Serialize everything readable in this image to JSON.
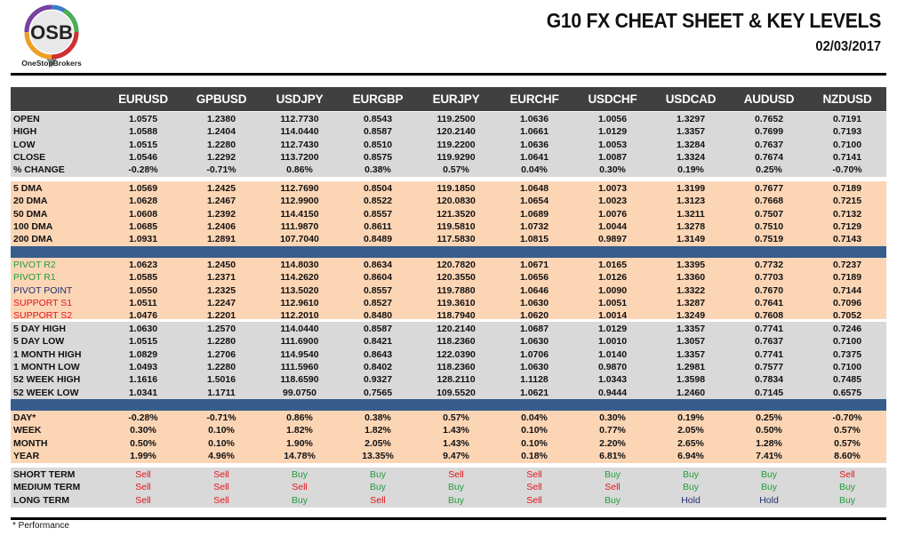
{
  "logo": {
    "text": "OSB",
    "brand": "OneStopBrokers"
  },
  "header": {
    "title": "G10 FX CHEAT SHEET & KEY LEVELS",
    "date": "02/03/2017"
  },
  "columns": [
    "EURUSD",
    "GPBUSD",
    "USDJPY",
    "EURGBP",
    "EURJPY",
    "EURCHF",
    "USDCHF",
    "USDCAD",
    "AUDUSD",
    "NZDUSD"
  ],
  "colors": {
    "header_bg": "#404040",
    "gray_bg": "#d9d9d9",
    "peach_bg": "#fcd5b5",
    "separator": "#375d8c",
    "green": "#1f9d3a",
    "red": "#e3131b",
    "navy": "#1f3070"
  },
  "sections": [
    {
      "bg": "gray",
      "rows": [
        {
          "label": "OPEN",
          "values": [
            "1.0575",
            "1.2380",
            "112.7730",
            "0.8543",
            "119.2500",
            "1.0636",
            "1.0056",
            "1.3297",
            "0.7652",
            "0.7191"
          ]
        },
        {
          "label": "HIGH",
          "values": [
            "1.0588",
            "1.2404",
            "114.0440",
            "0.8587",
            "120.2140",
            "1.0661",
            "1.0129",
            "1.3357",
            "0.7699",
            "0.7193"
          ]
        },
        {
          "label": "LOW",
          "values": [
            "1.0515",
            "1.2280",
            "112.7430",
            "0.8510",
            "119.2200",
            "1.0636",
            "1.0053",
            "1.3284",
            "0.7637",
            "0.7100"
          ]
        },
        {
          "label": "CLOSE",
          "values": [
            "1.0546",
            "1.2292",
            "113.7200",
            "0.8575",
            "119.9290",
            "1.0641",
            "1.0087",
            "1.3324",
            "0.7674",
            "0.7141"
          ]
        },
        {
          "label": "% CHANGE",
          "values": [
            "-0.28%",
            "-0.71%",
            "0.86%",
            "0.38%",
            "0.57%",
            "0.04%",
            "0.30%",
            "0.19%",
            "0.25%",
            "-0.70%"
          ]
        }
      ]
    },
    {
      "bg": "peach",
      "rows": [
        {
          "label": "5 DMA",
          "values": [
            "1.0569",
            "1.2425",
            "112.7690",
            "0.8504",
            "119.1850",
            "1.0648",
            "1.0073",
            "1.3199",
            "0.7677",
            "0.7189"
          ]
        },
        {
          "label": "20 DMA",
          "values": [
            "1.0628",
            "1.2467",
            "112.9900",
            "0.8522",
            "120.0830",
            "1.0654",
            "1.0023",
            "1.3123",
            "0.7668",
            "0.7215"
          ]
        },
        {
          "label": "50 DMA",
          "values": [
            "1.0608",
            "1.2392",
            "114.4150",
            "0.8557",
            "121.3520",
            "1.0689",
            "1.0076",
            "1.3211",
            "0.7507",
            "0.7132"
          ]
        },
        {
          "label": "100 DMA",
          "values": [
            "1.0685",
            "1.2406",
            "111.9870",
            "0.8611",
            "119.5810",
            "1.0732",
            "1.0044",
            "1.3278",
            "0.7510",
            "0.7129"
          ]
        },
        {
          "label": "200 DMA",
          "values": [
            "1.0931",
            "1.2891",
            "107.7040",
            "0.8489",
            "117.5830",
            "1.0815",
            "0.9897",
            "1.3149",
            "0.7519",
            "0.7143"
          ]
        }
      ]
    },
    {
      "bg": "peach",
      "rows": [
        {
          "label": "PIVOT R2",
          "color": "green",
          "values": [
            "1.0623",
            "1.2450",
            "114.8030",
            "0.8634",
            "120.7820",
            "1.0671",
            "1.0165",
            "1.3395",
            "0.7732",
            "0.7237"
          ]
        },
        {
          "label": "PIVOT R1",
          "color": "green",
          "values": [
            "1.0585",
            "1.2371",
            "114.2620",
            "0.8604",
            "120.3550",
            "1.0656",
            "1.0126",
            "1.3360",
            "0.7703",
            "0.7189"
          ]
        },
        {
          "label": "PIVOT POINT",
          "color": "navy",
          "values": [
            "1.0550",
            "1.2325",
            "113.5020",
            "0.8557",
            "119.7880",
            "1.0646",
            "1.0090",
            "1.3322",
            "0.7670",
            "0.7144"
          ]
        },
        {
          "label": "SUPPORT S1",
          "color": "red",
          "values": [
            "1.0511",
            "1.2247",
            "112.9610",
            "0.8527",
            "119.3610",
            "1.0630",
            "1.0051",
            "1.3287",
            "0.7641",
            "0.7096"
          ]
        },
        {
          "label": "SUPPORT S2",
          "color": "red",
          "values": [
            "1.0476",
            "1.2201",
            "112.2010",
            "0.8480",
            "118.7940",
            "1.0620",
            "1.0014",
            "1.3249",
            "0.7608",
            "0.7052"
          ]
        }
      ]
    },
    {
      "bg": "gray",
      "rows": [
        {
          "label": "5 DAY HIGH",
          "values": [
            "1.0630",
            "1.2570",
            "114.0440",
            "0.8587",
            "120.2140",
            "1.0687",
            "1.0129",
            "1.3357",
            "0.7741",
            "0.7246"
          ]
        },
        {
          "label": "5 DAY LOW",
          "values": [
            "1.0515",
            "1.2280",
            "111.6900",
            "0.8421",
            "118.2360",
            "1.0630",
            "1.0010",
            "1.3057",
            "0.7637",
            "0.7100"
          ]
        },
        {
          "label": "1 MONTH HIGH",
          "values": [
            "1.0829",
            "1.2706",
            "114.9540",
            "0.8643",
            "122.0390",
            "1.0706",
            "1.0140",
            "1.3357",
            "0.7741",
            "0.7375"
          ]
        },
        {
          "label": "1 MONTH LOW",
          "values": [
            "1.0493",
            "1.2280",
            "111.5960",
            "0.8402",
            "118.2360",
            "1.0630",
            "0.9870",
            "1.2981",
            "0.7577",
            "0.7100"
          ]
        },
        {
          "label": "52 WEEK HIGH",
          "values": [
            "1.1616",
            "1.5016",
            "118.6590",
            "0.9327",
            "128.2110",
            "1.1128",
            "1.0343",
            "1.3598",
            "0.7834",
            "0.7485"
          ]
        },
        {
          "label": "52 WEEK LOW",
          "values": [
            "1.0341",
            "1.1711",
            "99.0750",
            "0.7565",
            "109.5520",
            "1.0621",
            "0.9444",
            "1.2460",
            "0.7145",
            "0.6575"
          ]
        }
      ]
    },
    {
      "bg": "peach",
      "rows": [
        {
          "label": "DAY*",
          "values": [
            "-0.28%",
            "-0.71%",
            "0.86%",
            "0.38%",
            "0.57%",
            "0.04%",
            "0.30%",
            "0.19%",
            "0.25%",
            "-0.70%"
          ]
        },
        {
          "label": "WEEK",
          "values": [
            "0.30%",
            "0.10%",
            "1.82%",
            "1.82%",
            "1.43%",
            "0.10%",
            "0.77%",
            "2.05%",
            "0.50%",
            "0.57%"
          ]
        },
        {
          "label": "MONTH",
          "values": [
            "0.50%",
            "0.10%",
            "1.90%",
            "2.05%",
            "1.43%",
            "0.10%",
            "2.20%",
            "2.65%",
            "1.28%",
            "0.57%"
          ]
        },
        {
          "label": "YEAR",
          "values": [
            "1.99%",
            "4.96%",
            "14.78%",
            "13.35%",
            "9.47%",
            "0.18%",
            "6.81%",
            "6.94%",
            "7.41%",
            "8.60%"
          ]
        }
      ]
    },
    {
      "bg": "gray",
      "signals": true,
      "rows": [
        {
          "label": "SHORT TERM",
          "values": [
            "Sell",
            "Sell",
            "Buy",
            "Buy",
            "Sell",
            "Sell",
            "Buy",
            "Buy",
            "Buy",
            "Sell"
          ]
        },
        {
          "label": "MEDIUM TERM",
          "values": [
            "Sell",
            "Sell",
            "Sell",
            "Buy",
            "Buy",
            "Sell",
            "Sell",
            "Buy",
            "Buy",
            "Buy"
          ]
        },
        {
          "label": "LONG TERM",
          "values": [
            "Sell",
            "Sell",
            "Buy",
            "Sell",
            "Buy",
            "Sell",
            "Buy",
            "Hold",
            "Hold",
            "Buy"
          ]
        }
      ]
    }
  ],
  "footnote": "* Performance"
}
